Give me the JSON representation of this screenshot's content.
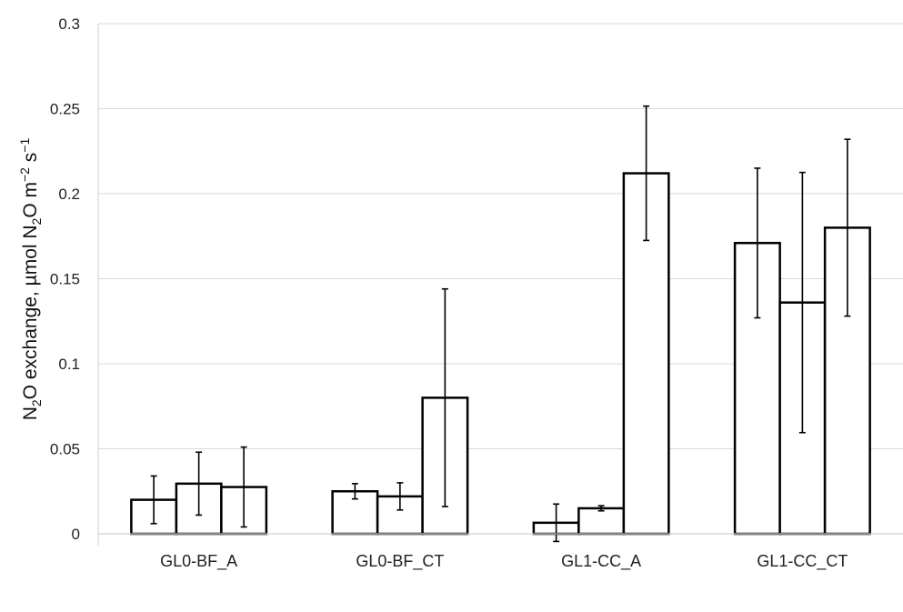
{
  "chart_data": {
    "type": "bar",
    "categories": [
      "GL0-BF_A",
      "GL0-BF_CT",
      "GL1-CC_A",
      "GL1-CC_CT"
    ],
    "series": [
      {
        "values": [
          0.02,
          0.025,
          0.0065,
          0.171
        ],
        "errors": [
          0.014,
          0.0045,
          0.011,
          0.044
        ]
      },
      {
        "values": [
          0.0295,
          0.022,
          0.015,
          0.136
        ],
        "errors": [
          0.0185,
          0.008,
          0.0015,
          0.0765
        ]
      },
      {
        "values": [
          0.0275,
          0.08,
          0.212,
          0.18
        ],
        "errors": [
          0.0235,
          0.064,
          0.0395,
          0.052
        ]
      }
    ],
    "ylabel_parts": {
      "p1": "N",
      "p2": "2",
      "p3": "O exchange, µmol N",
      "p4": "2",
      "p5": "O m",
      "p6": "−2",
      "p7": " s",
      "p8": "−1"
    },
    "ylim": [
      0,
      0.3
    ],
    "yticks": [
      0,
      0.05,
      0.1,
      0.15,
      0.2,
      0.25,
      0.3
    ],
    "ytick_labels": [
      "0",
      "0.05",
      "0.1",
      "0.15",
      "0.2",
      "0.25",
      "0.3"
    ],
    "grid": true,
    "bar_fill": "#ffffff",
    "bar_stroke": "#000000",
    "grid_color": "#d9d9d9"
  }
}
